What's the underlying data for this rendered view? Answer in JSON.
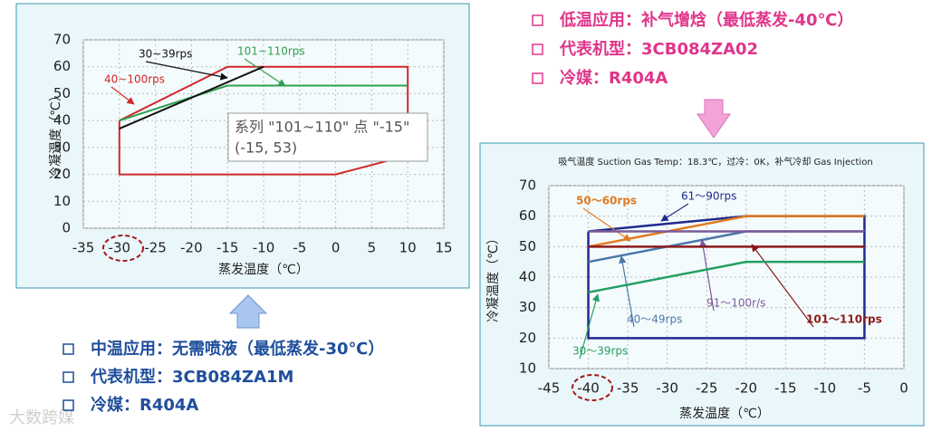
{
  "chart_data": [
    {
      "type": "line",
      "x_label": "蒸发温度（℃）",
      "y_label": "冷凝温度（℃）",
      "xlim": [
        -35,
        15
      ],
      "xticks": [
        -35,
        -30,
        -25,
        -20,
        -15,
        -10,
        -5,
        0,
        5,
        10,
        15
      ],
      "ylim": [
        0,
        70
      ],
      "yticks": [
        0,
        10,
        20,
        30,
        40,
        50,
        60,
        70
      ],
      "grid": true,
      "series": [
        {
          "name": "40~100rps",
          "color": "#d02828",
          "x": [
            -30,
            -15,
            10,
            10,
            0,
            -30,
            -30
          ],
          "values": [
            40,
            60,
            60,
            27,
            20,
            20,
            40
          ]
        },
        {
          "name": "101~110rps",
          "color": "#2fa050",
          "x": [
            -30,
            -15,
            10
          ],
          "values": [
            40,
            53,
            53
          ]
        },
        {
          "name": "30~39rps",
          "color": "#111111",
          "x": [
            -30,
            -10
          ],
          "values": [
            37,
            60
          ]
        }
      ],
      "tooltip": [
        "系列 \"101~110\" 点 \"-15\"",
        "(-15, 53)"
      ]
    },
    {
      "type": "line",
      "title": "吸气温度 Suction Gas Temp：18.3℃，过冷：0K，补气冷却  Gas Injection",
      "x_label": "蒸发温度（℃）",
      "y_label": "冷凝温度（℃）",
      "xlim": [
        -45,
        0
      ],
      "xticks": [
        -45,
        -40,
        -35,
        -30,
        -25,
        -20,
        -15,
        -10,
        -5,
        0
      ],
      "ylim": [
        10,
        70
      ],
      "yticks": [
        10,
        20,
        30,
        40,
        50,
        60,
        70
      ],
      "grid": true,
      "series": [
        {
          "name": "61～90rps",
          "color": "#1f2a8f",
          "x": [
            -40,
            -20,
            -5,
            -5,
            -40,
            -40
          ],
          "values": [
            55,
            60,
            60,
            20,
            20,
            55
          ]
        },
        {
          "name": "50～60rps",
          "color": "#e07b20",
          "x": [
            -40,
            -20,
            -5
          ],
          "values": [
            50,
            60,
            60
          ]
        },
        {
          "name": "40～49rps",
          "color": "#4a78a8",
          "x": [
            -40,
            -20,
            -5
          ],
          "values": [
            45,
            55,
            55
          ]
        },
        {
          "name": "91～100r/s",
          "color": "#7a5a9a",
          "x": [
            -40,
            -5
          ],
          "values": [
            55,
            55
          ]
        },
        {
          "name": "101～110rps",
          "color": "#8b1a1a",
          "x": [
            -40,
            -5
          ],
          "values": [
            50,
            50
          ]
        },
        {
          "name": "30～39rps",
          "color": "#22a060",
          "x": [
            -40,
            -20,
            -5
          ],
          "values": [
            35,
            45,
            45
          ]
        }
      ]
    }
  ],
  "texts": {
    "left_bullets": [
      "中温应用：无需喷液（最低蒸发-30℃）",
      "代表机型：3CB084ZA1M",
      "冷媒：R404A"
    ],
    "right_bullets": [
      "低温应用：补气增焓（最低蒸发-40℃）",
      "代表机型：3CB084ZA02",
      "冷媒：R404A"
    ],
    "watermark": "大数跨媒"
  }
}
